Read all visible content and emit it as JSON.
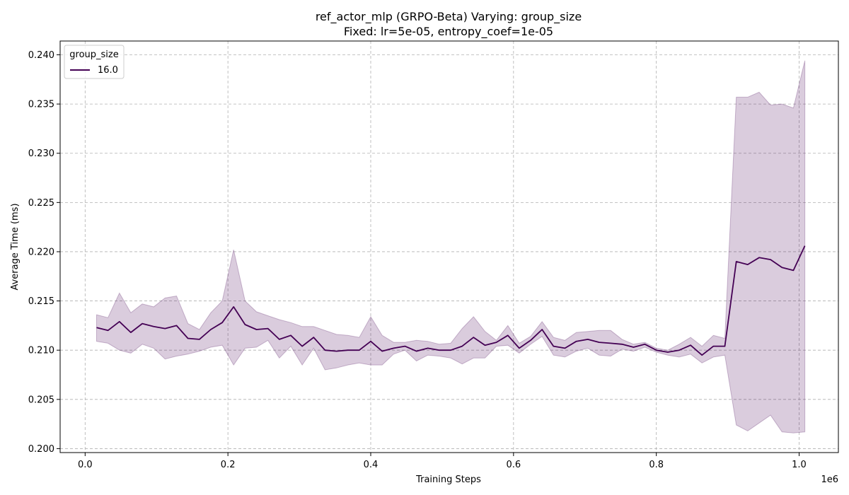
{
  "chart_data": {
    "type": "line",
    "title": "ref_actor_mlp (GRPO-Beta) Varying: group_size",
    "subtitle": "Fixed: lr=5e-05, entropy_coef=1e-05",
    "xlabel": "Training Steps",
    "ylabel": "Average Time (ms)",
    "x_offset_label": "1e6",
    "xlim": [
      -0.035,
      1.055
    ],
    "ylim": [
      0.1996,
      0.2414
    ],
    "xticks": [
      0.0,
      0.2,
      0.4,
      0.6,
      0.8,
      1.0
    ],
    "xtick_labels": [
      "0.0",
      "0.2",
      "0.4",
      "0.6",
      "0.8",
      "1.0"
    ],
    "yticks": [
      0.2,
      0.205,
      0.21,
      0.215,
      0.22,
      0.225,
      0.23,
      0.235,
      0.24
    ],
    "ytick_labels": [
      "0.200",
      "0.205",
      "0.210",
      "0.215",
      "0.220",
      "0.225",
      "0.230",
      "0.235",
      "0.240"
    ],
    "grid": true,
    "legend": {
      "title": "group_size",
      "placement": "top-left"
    },
    "series": [
      {
        "name": "16.0",
        "color": "#440154",
        "band_color": "#440154",
        "x": [
          0.016,
          0.032,
          0.048,
          0.064,
          0.08,
          0.096,
          0.112,
          0.128,
          0.144,
          0.16,
          0.176,
          0.192,
          0.208,
          0.224,
          0.24,
          0.256,
          0.272,
          0.288,
          0.304,
          0.32,
          0.336,
          0.352,
          0.368,
          0.384,
          0.4,
          0.416,
          0.432,
          0.448,
          0.464,
          0.48,
          0.496,
          0.512,
          0.528,
          0.544,
          0.56,
          0.576,
          0.592,
          0.608,
          0.624,
          0.64,
          0.656,
          0.672,
          0.688,
          0.704,
          0.72,
          0.736,
          0.752,
          0.768,
          0.784,
          0.8,
          0.816,
          0.832,
          0.848,
          0.864,
          0.88,
          0.896,
          0.912,
          0.928,
          0.944,
          0.96,
          0.976,
          0.992,
          1.008
        ],
        "y": [
          0.2123,
          0.212,
          0.2129,
          0.2118,
          0.2127,
          0.2124,
          0.2122,
          0.2125,
          0.2112,
          0.2111,
          0.2121,
          0.2128,
          0.2144,
          0.2126,
          0.2121,
          0.2122,
          0.2111,
          0.2115,
          0.2104,
          0.2113,
          0.21,
          0.2099,
          0.21,
          0.21,
          0.2109,
          0.2099,
          0.2102,
          0.2104,
          0.2099,
          0.2102,
          0.21,
          0.21,
          0.2104,
          0.2113,
          0.2105,
          0.2108,
          0.2115,
          0.2102,
          0.211,
          0.2121,
          0.2104,
          0.2102,
          0.2109,
          0.2111,
          0.2108,
          0.2107,
          0.2106,
          0.2103,
          0.2106,
          0.21,
          0.2098,
          0.21,
          0.2105,
          0.2095,
          0.2104,
          0.2104,
          0.219,
          0.2187,
          0.2194,
          0.2192,
          0.2184,
          0.2181,
          0.2206
        ],
        "y_lower": [
          0.2109,
          0.2107,
          0.21,
          0.2097,
          0.2106,
          0.2102,
          0.2091,
          0.2094,
          0.2096,
          0.2099,
          0.2103,
          0.2105,
          0.2085,
          0.2102,
          0.2103,
          0.211,
          0.2092,
          0.2104,
          0.2085,
          0.2102,
          0.208,
          0.2082,
          0.2085,
          0.2087,
          0.2085,
          0.2085,
          0.2096,
          0.21,
          0.2089,
          0.2095,
          0.2094,
          0.2092,
          0.2086,
          0.2092,
          0.2092,
          0.2104,
          0.2105,
          0.2097,
          0.2106,
          0.2114,
          0.2095,
          0.2093,
          0.2099,
          0.2102,
          0.2095,
          0.2094,
          0.2101,
          0.2099,
          0.2103,
          0.2098,
          0.2095,
          0.2093,
          0.2096,
          0.2087,
          0.2093,
          0.2095,
          0.2024,
          0.2018,
          0.2026,
          0.2034,
          0.2017,
          0.2016,
          0.2017
        ],
        "y_upper": [
          0.2136,
          0.2133,
          0.2158,
          0.2138,
          0.2147,
          0.2144,
          0.2153,
          0.2155,
          0.2127,
          0.2121,
          0.2138,
          0.215,
          0.2202,
          0.215,
          0.2139,
          0.2135,
          0.2131,
          0.2128,
          0.2124,
          0.2124,
          0.212,
          0.2116,
          0.2115,
          0.2113,
          0.2134,
          0.2115,
          0.2108,
          0.2108,
          0.211,
          0.2109,
          0.2106,
          0.2107,
          0.2122,
          0.2134,
          0.2119,
          0.211,
          0.2125,
          0.2107,
          0.2114,
          0.2129,
          0.2113,
          0.211,
          0.2118,
          0.2119,
          0.212,
          0.212,
          0.2111,
          0.2106,
          0.2108,
          0.2102,
          0.21,
          0.2106,
          0.2113,
          0.2104,
          0.2115,
          0.2112,
          0.2357,
          0.2357,
          0.2362,
          0.2349,
          0.235,
          0.2346,
          0.2394
        ]
      }
    ]
  }
}
